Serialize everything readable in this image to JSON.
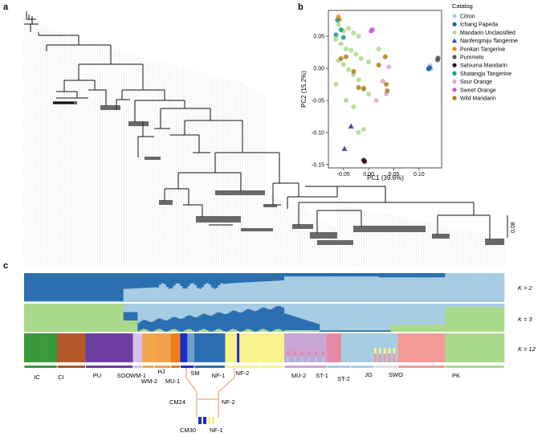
{
  "panels": {
    "a": "a",
    "b": "b",
    "c": "c"
  },
  "tree": {
    "scale_label": "0.08"
  },
  "pca": {
    "xlabel": "PC1 (39.6%)",
    "ylabel": "PC2 (15.2%)",
    "x_ticks": [
      "-0.05",
      "0.00",
      "0.05",
      "0.10"
    ],
    "y_ticks": [
      "0.05",
      "0.00",
      "-0.05",
      "-0.10",
      "-0.15"
    ],
    "legend_title": "Catalog"
  },
  "chart_data": {
    "type": "scatter",
    "xlabel": "PC1 (39.6%)",
    "ylabel": "PC2 (15.2%)",
    "xlim": [
      -0.08,
      0.145
    ],
    "ylim": [
      -0.155,
      0.09
    ],
    "legend_title": "Catalog",
    "series": [
      {
        "name": "Citron",
        "color": "#9fd0e8",
        "shape": "circle",
        "points": [
          [
            0.122,
            0.004
          ],
          [
            0.124,
            -0.001
          ]
        ]
      },
      {
        "name": "Ichang Papeda",
        "color": "#1f5fa8",
        "shape": "circle",
        "points": [
          [
            0.119,
            -0.001
          ],
          [
            0.121,
            0.001
          ]
        ]
      },
      {
        "name": "Mandarin Unclassified",
        "color": "#a9d98b",
        "shape": "circle",
        "points": [
          [
            -0.06,
            0.068
          ],
          [
            -0.05,
            0.058
          ],
          [
            -0.04,
            0.062
          ],
          [
            -0.03,
            0.055
          ],
          [
            -0.02,
            0.05
          ],
          [
            -0.066,
            0.045
          ],
          [
            -0.055,
            0.038
          ],
          [
            -0.045,
            0.03
          ],
          [
            -0.035,
            0.028
          ],
          [
            -0.025,
            0.022
          ],
          [
            -0.015,
            0.015
          ],
          [
            -0.06,
            0.012
          ],
          [
            -0.05,
            0.006
          ],
          [
            -0.04,
            -0.002
          ],
          [
            -0.03,
            -0.01
          ],
          [
            -0.02,
            -0.018
          ],
          [
            -0.01,
            -0.03
          ],
          [
            0.0,
            -0.04
          ],
          [
            -0.065,
            -0.025
          ],
          [
            -0.045,
            -0.05
          ],
          [
            -0.03,
            -0.06
          ],
          [
            -0.02,
            -0.1
          ],
          [
            -0.01,
            -0.095
          ],
          [
            0.0,
            0.01
          ],
          [
            0.02,
            0.03
          ]
        ]
      },
      {
        "name": "Nanfengmiju Tangerine",
        "color": "#3a3aa8",
        "shape": "triangle",
        "points": [
          [
            -0.035,
            -0.09
          ],
          [
            -0.048,
            -0.125
          ]
        ]
      },
      {
        "name": "Ponkan Tangerine",
        "color": "#f08a1c",
        "shape": "circle",
        "points": [
          [
            -0.06,
            0.08
          ],
          [
            -0.058,
            0.076
          ]
        ]
      },
      {
        "name": "Pummelo",
        "color": "#555555",
        "shape": "circle",
        "points": [
          [
            0.138,
            0.016
          ],
          [
            0.137,
            0.013
          ]
        ]
      },
      {
        "name": "Satsuma Mandarin",
        "color": "#2a0a14",
        "shape": "circle",
        "points": [
          [
            -0.01,
            -0.143
          ],
          [
            -0.008,
            -0.145
          ]
        ]
      },
      {
        "name": "Shatangju Tangerine",
        "color": "#1a9a8a",
        "shape": "circle",
        "points": [
          [
            -0.062,
            0.075
          ],
          [
            -0.055,
            0.06
          ],
          [
            -0.05,
            0.048
          ],
          [
            -0.065,
            0.052
          ]
        ]
      },
      {
        "name": "Sour Orange",
        "color": "#d9a8cf",
        "shape": "circle",
        "points": [
          [
            0.04,
            0.002
          ],
          [
            0.028,
            -0.02
          ],
          [
            0.035,
            -0.04
          ],
          [
            0.015,
            -0.05
          ]
        ]
      },
      {
        "name": "Sweet Orange",
        "color": "#c555e0",
        "shape": "circle",
        "points": [
          [
            0.005,
            0.058
          ],
          [
            0.007,
            0.06
          ]
        ]
      },
      {
        "name": "Wild Mandarin",
        "color": "#b07a1a",
        "shape": "circle",
        "points": [
          [
            -0.055,
            0.015
          ],
          [
            -0.045,
            0.018
          ],
          [
            -0.03,
            -0.005
          ],
          [
            -0.02,
            -0.03
          ],
          [
            -0.01,
            -0.032
          ],
          [
            0.02,
            0.005
          ],
          [
            0.035,
            -0.025
          ],
          [
            0.037,
            -0.035
          ],
          [
            0.033,
            0.018
          ]
        ]
      }
    ]
  },
  "structure": {
    "k_labels": [
      "K = 2",
      "K = 3",
      "K = 12"
    ],
    "groups": [
      "IC",
      "CI",
      "PU",
      "SOO",
      "WM-1",
      "WM-2",
      "HJ",
      "MU-1",
      "SM",
      "NF-1",
      "NF-2",
      "MU-2",
      "ST-1",
      "ST-2",
      "JG",
      "SWO",
      "PK"
    ],
    "zoom_labels": [
      "CM24",
      "NF-2",
      "CM30",
      "NF-1"
    ]
  }
}
